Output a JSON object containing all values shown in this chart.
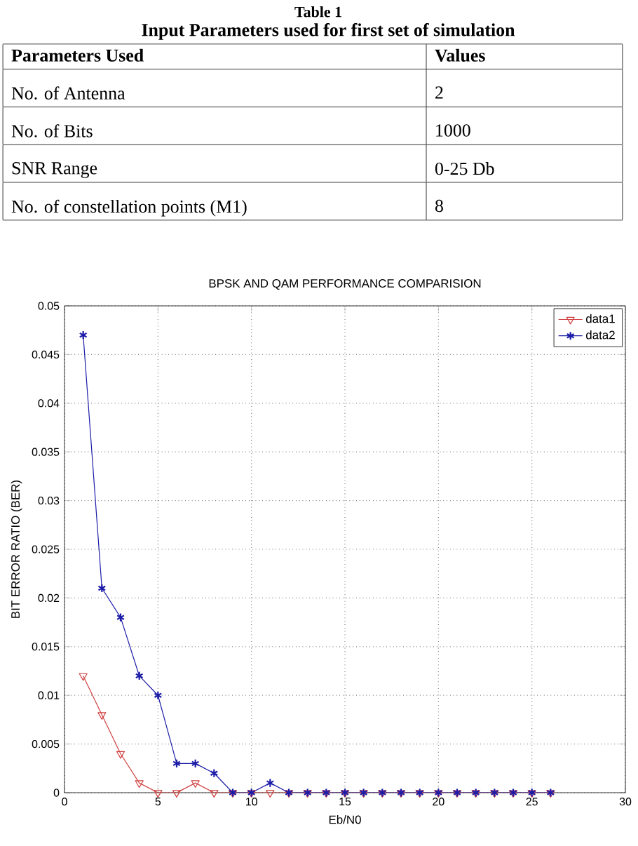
{
  "chart_data": [
    {
      "type": "other",
      "title": "Table 1",
      "subtitle": "Input Parameters used for first set of simulation",
      "annotations": [
        "Parameters Used",
        "Values",
        "No. of Antenna",
        "2",
        "No. of Bits",
        "1000",
        "SNR Range",
        "0-25 Db",
        "No. of constellation points (M1)",
        "8"
      ]
    },
    {
      "type": "line",
      "title": "BPSK AND QAM PERFORMANCE COMPARISION",
      "xlabel": "Eb/N0",
      "ylabel": "BIT ERROR RATIO (BER)",
      "x": [
        1,
        2,
        3,
        4,
        5,
        6,
        7,
        8,
        9,
        10,
        11,
        12,
        13,
        14,
        15,
        16,
        17,
        18,
        19,
        20,
        21,
        22,
        23,
        24,
        25,
        26
      ],
      "series": [
        {
          "name": "data1",
          "color": "#d04040",
          "marker": "triangle",
          "values": [
            0.012,
            0.008,
            0.004,
            0.001,
            0,
            0,
            0.001,
            0,
            0,
            0,
            0,
            0,
            0,
            0,
            0,
            0,
            0,
            0,
            0,
            0,
            0,
            0,
            0,
            0,
            0,
            0
          ]
        },
        {
          "name": "data2",
          "color": "#1c1ca8",
          "marker": "cross",
          "values": [
            0.047,
            0.021,
            0.018,
            0.012,
            0.01,
            0.003,
            0.003,
            0.002,
            0,
            0,
            0.001,
            0,
            0,
            0,
            0,
            0,
            0,
            0,
            0,
            0,
            0,
            0,
            0,
            0,
            0,
            0
          ]
        }
      ],
      "xlim": [
        0,
        30
      ],
      "ylim": [
        0,
        0.05
      ],
      "xticks": [
        0,
        5,
        10,
        15,
        20,
        25,
        30
      ],
      "yticks": [
        0,
        0.005,
        0.01,
        0.015,
        0.02,
        0.025,
        0.03,
        0.035,
        0.04,
        0.045,
        0.05
      ],
      "grid": true,
      "legend": "top right",
      "line_style": "solid"
    }
  ]
}
